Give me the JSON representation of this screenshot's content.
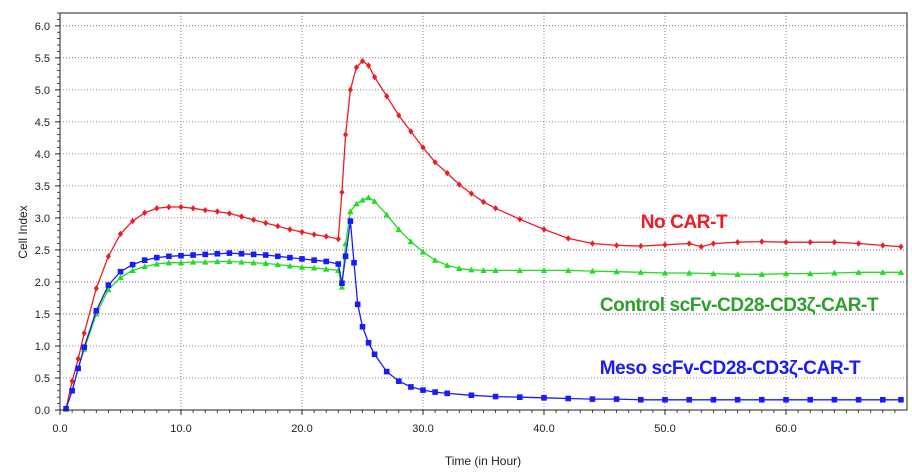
{
  "chart_data": {
    "type": "line",
    "xlabel": "Time (in Hour)",
    "ylabel": "Cell Index",
    "xlim": [
      0,
      70
    ],
    "ylim": [
      0,
      6.2
    ],
    "x_ticks": [
      {
        "value": 0,
        "label": "0.0"
      },
      {
        "value": 10,
        "label": "10.0"
      },
      {
        "value": 20,
        "label": "20.0"
      },
      {
        "value": 30,
        "label": "30.0"
      },
      {
        "value": 40,
        "label": "40.0"
      },
      {
        "value": 50,
        "label": "50.0"
      },
      {
        "value": 60,
        "label": "60.0"
      }
    ],
    "y_ticks": [
      {
        "value": 0,
        "label": "0.0"
      },
      {
        "value": 0.5,
        "label": "0.5"
      },
      {
        "value": 1.0,
        "label": "1.0"
      },
      {
        "value": 1.5,
        "label": "1.5"
      },
      {
        "value": 2.0,
        "label": "2.0"
      },
      {
        "value": 2.5,
        "label": "2.5"
      },
      {
        "value": 3.0,
        "label": "3.0"
      },
      {
        "value": 3.5,
        "label": "3.5"
      },
      {
        "value": 4.0,
        "label": "4.0"
      },
      {
        "value": 4.5,
        "label": "4.5"
      },
      {
        "value": 5.0,
        "label": "5.0"
      },
      {
        "value": 5.5,
        "label": "5.5"
      },
      {
        "value": 6.0,
        "label": "6.0"
      }
    ],
    "grid": true,
    "series": [
      {
        "name": "No CAR-T",
        "color": "#ee1c24",
        "marker": "diamond",
        "x": [
          0.5,
          1,
          1.5,
          2,
          3,
          4,
          5,
          6,
          7,
          8,
          9,
          10,
          11,
          12,
          13,
          14,
          15,
          16,
          17,
          18,
          19,
          20,
          21,
          22,
          23,
          23.3,
          23.6,
          24,
          24.5,
          25,
          25.5,
          26,
          27,
          28,
          29,
          30,
          31,
          32,
          33,
          34,
          35,
          36,
          38,
          40,
          42,
          44,
          46,
          48,
          50,
          52,
          53,
          54,
          56,
          58,
          60,
          62,
          64,
          66,
          68,
          69.5
        ],
        "y": [
          0.02,
          0.45,
          0.8,
          1.2,
          1.9,
          2.4,
          2.75,
          2.95,
          3.08,
          3.15,
          3.17,
          3.17,
          3.15,
          3.12,
          3.1,
          3.07,
          3.02,
          2.97,
          2.92,
          2.87,
          2.82,
          2.78,
          2.74,
          2.71,
          2.67,
          3.4,
          4.3,
          5.0,
          5.35,
          5.45,
          5.38,
          5.2,
          4.9,
          4.6,
          4.35,
          4.1,
          3.87,
          3.7,
          3.52,
          3.38,
          3.25,
          3.15,
          2.98,
          2.82,
          2.68,
          2.6,
          2.57,
          2.56,
          2.58,
          2.6,
          2.55,
          2.6,
          2.62,
          2.63,
          2.62,
          2.62,
          2.62,
          2.6,
          2.57,
          2.55
        ]
      },
      {
        "name": "Control scFv-CD28-CD3ζ-CAR-T",
        "color": "#22dd22",
        "marker": "triangle",
        "x": [
          0.5,
          1,
          1.5,
          2,
          3,
          4,
          5,
          6,
          7,
          8,
          9,
          10,
          11,
          12,
          13,
          14,
          15,
          16,
          17,
          18,
          19,
          20,
          21,
          22,
          23,
          23.3,
          23.6,
          24,
          24.5,
          25,
          25.5,
          26,
          27,
          28,
          29,
          30,
          31,
          32,
          33,
          34,
          35,
          36,
          38,
          40,
          42,
          44,
          46,
          48,
          50,
          52,
          54,
          56,
          58,
          60,
          62,
          64,
          66,
          68,
          69.5
        ],
        "y": [
          0.02,
          0.3,
          0.65,
          0.95,
          1.5,
          1.88,
          2.07,
          2.18,
          2.24,
          2.28,
          2.3,
          2.3,
          2.31,
          2.31,
          2.32,
          2.32,
          2.31,
          2.3,
          2.29,
          2.27,
          2.25,
          2.23,
          2.22,
          2.2,
          2.18,
          1.92,
          2.6,
          3.1,
          3.22,
          3.28,
          3.32,
          3.26,
          3.05,
          2.82,
          2.63,
          2.47,
          2.34,
          2.26,
          2.21,
          2.19,
          2.18,
          2.18,
          2.18,
          2.18,
          2.18,
          2.17,
          2.16,
          2.15,
          2.14,
          2.14,
          2.13,
          2.12,
          2.12,
          2.13,
          2.13,
          2.14,
          2.15,
          2.15,
          2.15
        ]
      },
      {
        "name": "Meso scFv-CD28-CD3ζ-CAR-T",
        "color": "#1a1aff",
        "marker": "square",
        "x": [
          0.5,
          1,
          1.5,
          2,
          3,
          4,
          5,
          6,
          7,
          8,
          9,
          10,
          11,
          12,
          13,
          14,
          15,
          16,
          17,
          18,
          19,
          20,
          21,
          22,
          23,
          23.3,
          23.6,
          24,
          24.3,
          24.6,
          25,
          25.5,
          26,
          27,
          28,
          29,
          30,
          31,
          32,
          34,
          36,
          38,
          40,
          42,
          44,
          46,
          48,
          50,
          52,
          54,
          56,
          58,
          60,
          62,
          64,
          66,
          68,
          69.5
        ],
        "y": [
          0.02,
          0.3,
          0.65,
          0.98,
          1.55,
          1.95,
          2.16,
          2.27,
          2.34,
          2.38,
          2.4,
          2.41,
          2.42,
          2.43,
          2.44,
          2.45,
          2.44,
          2.43,
          2.42,
          2.4,
          2.38,
          2.36,
          2.34,
          2.32,
          2.28,
          1.98,
          2.4,
          2.95,
          2.3,
          1.65,
          1.3,
          1.05,
          0.87,
          0.6,
          0.45,
          0.36,
          0.31,
          0.28,
          0.26,
          0.23,
          0.21,
          0.2,
          0.19,
          0.18,
          0.17,
          0.17,
          0.16,
          0.16,
          0.16,
          0.16,
          0.16,
          0.16,
          0.16,
          0.16,
          0.16,
          0.16,
          0.16,
          0.16
        ]
      }
    ]
  }
}
